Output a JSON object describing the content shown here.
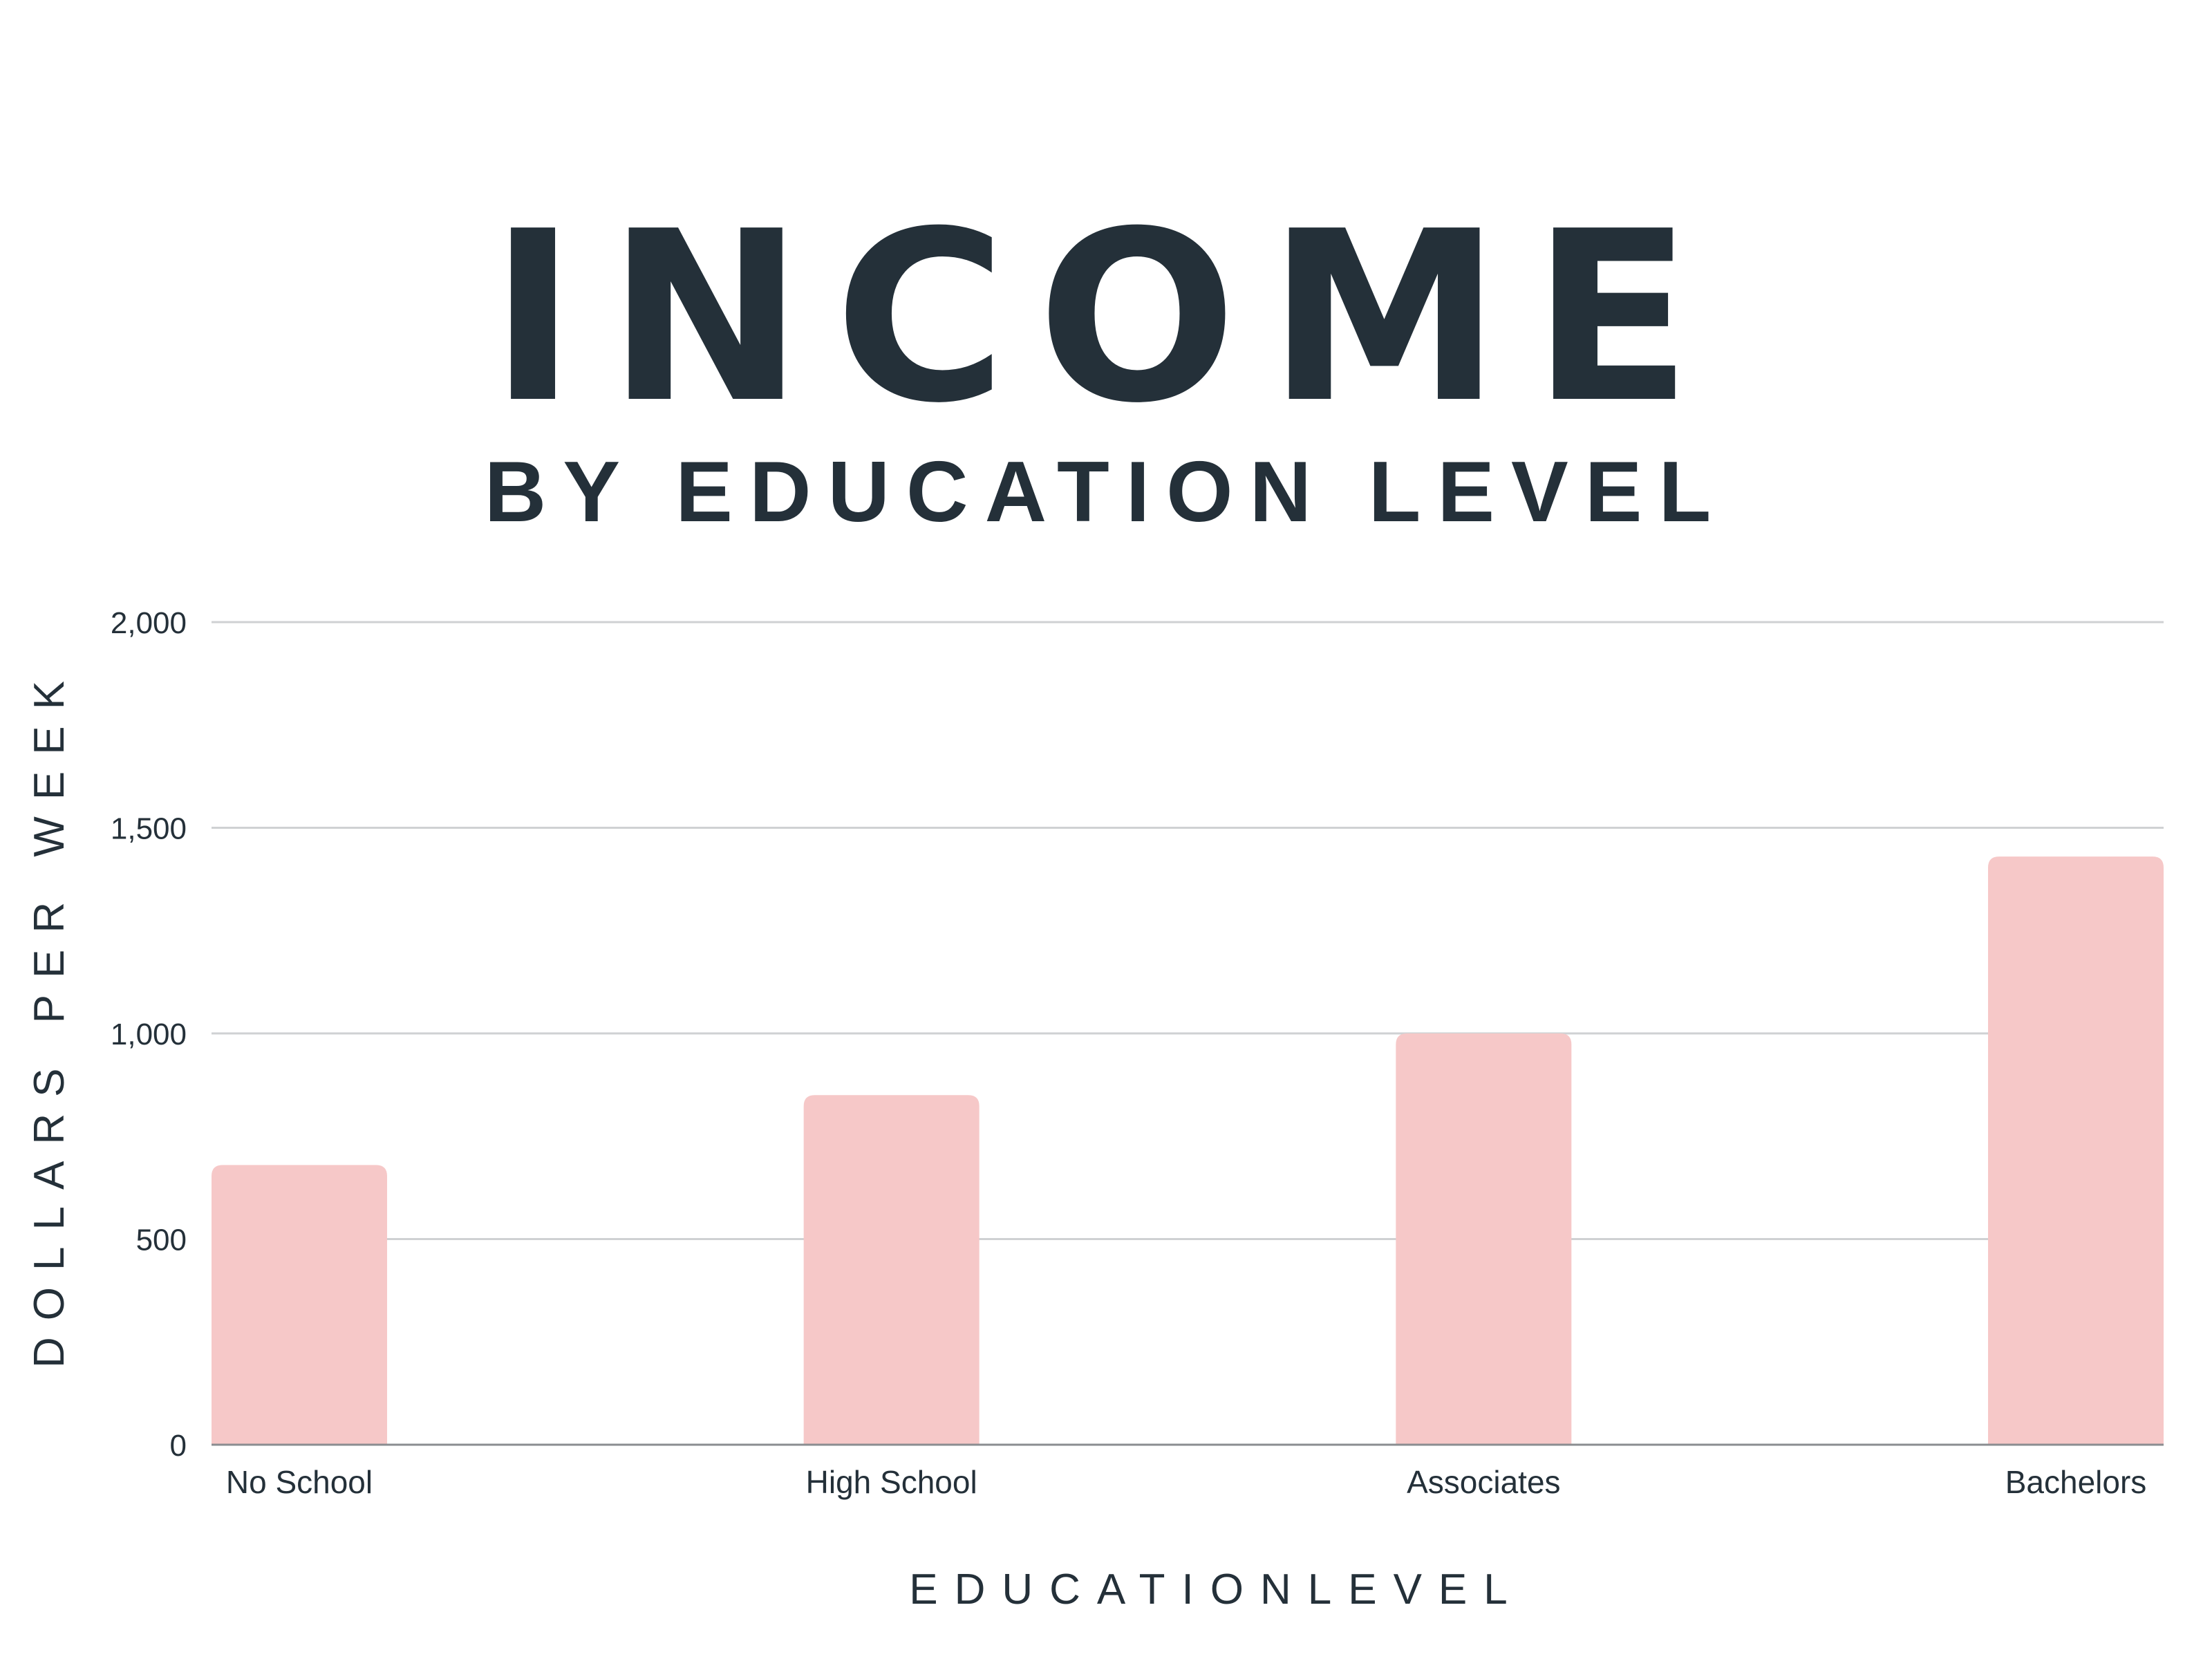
{
  "chart_data": {
    "type": "bar",
    "title": "INCOME",
    "subtitle": "BY EDUCATION LEVEL",
    "xlabel": "EDUCATIONLEVEL",
    "ylabel": "DOLLARS PER WEEK",
    "categories": [
      "No School",
      "High School",
      "Associates",
      "Bachelors"
    ],
    "values": [
      680,
      850,
      1000,
      1430
    ],
    "ylim": [
      0,
      2000
    ],
    "yticks": [
      0,
      500,
      1000,
      1500,
      2000
    ],
    "ytick_labels": [
      "0",
      "500",
      "1,000",
      "1,500",
      "2,000"
    ],
    "grid": true,
    "bar_color": "#f6c8c8",
    "text_color": "#243039",
    "grid_color": "#cfd1d3"
  }
}
